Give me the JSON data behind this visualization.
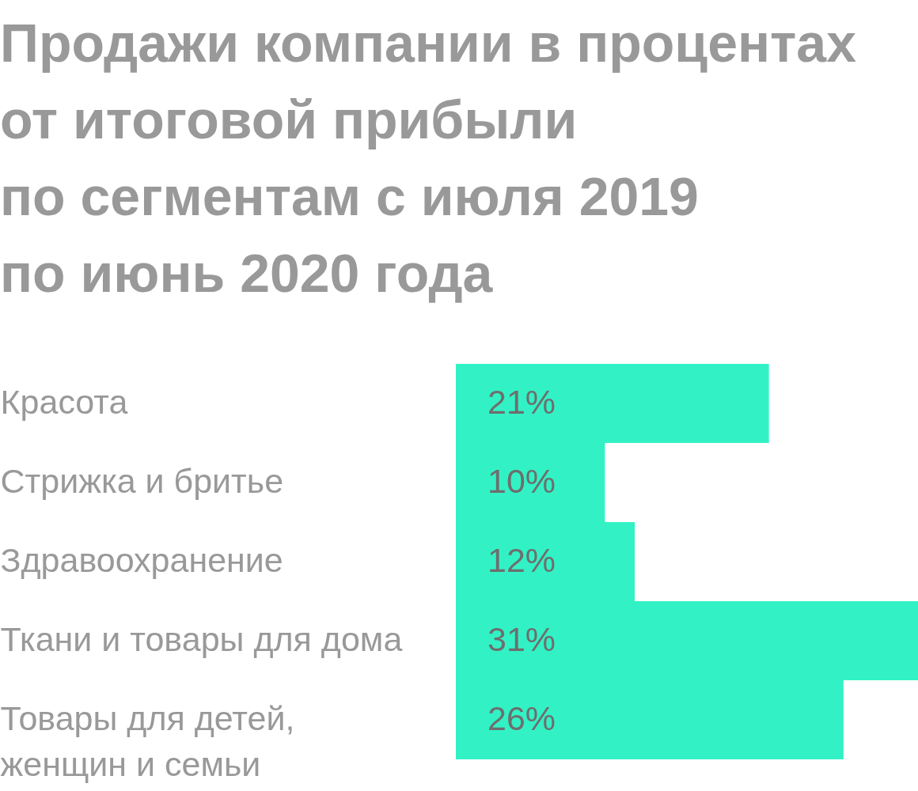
{
  "chart_data": {
    "type": "bar",
    "orientation": "horizontal",
    "title": "Продажи компании в процентах\nот итоговой прибыли\nпо сегментам с июля 2019\nпо июнь 2020 года",
    "categories": [
      "Красота",
      "Стрижка и бритье",
      "Здравоохранение",
      "Ткани и товары для дома",
      "Товары для детей, женщин и семьи"
    ],
    "values": [
      21,
      10,
      12,
      31,
      26
    ],
    "value_labels": [
      "21%",
      "10%",
      "12%",
      "31%",
      "26%"
    ],
    "color": "#32f2c5",
    "grid": false
  }
}
